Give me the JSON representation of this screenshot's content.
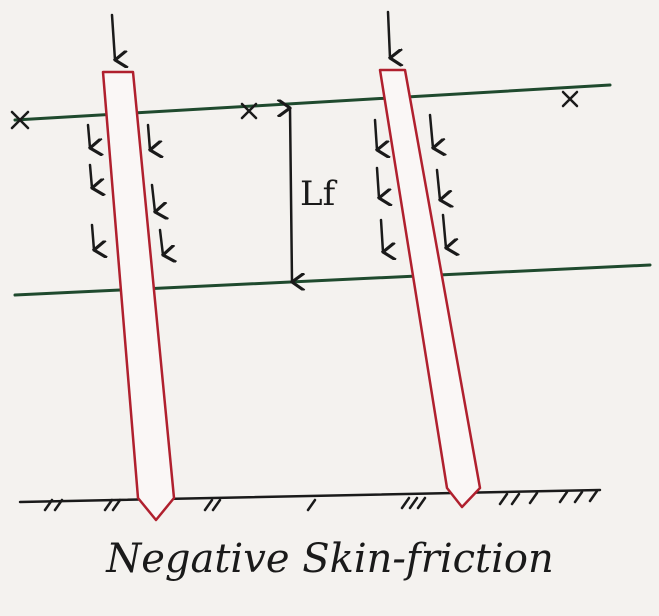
{
  "diagram": {
    "label": "Lf",
    "caption": "Negative Skin-friction"
  }
}
